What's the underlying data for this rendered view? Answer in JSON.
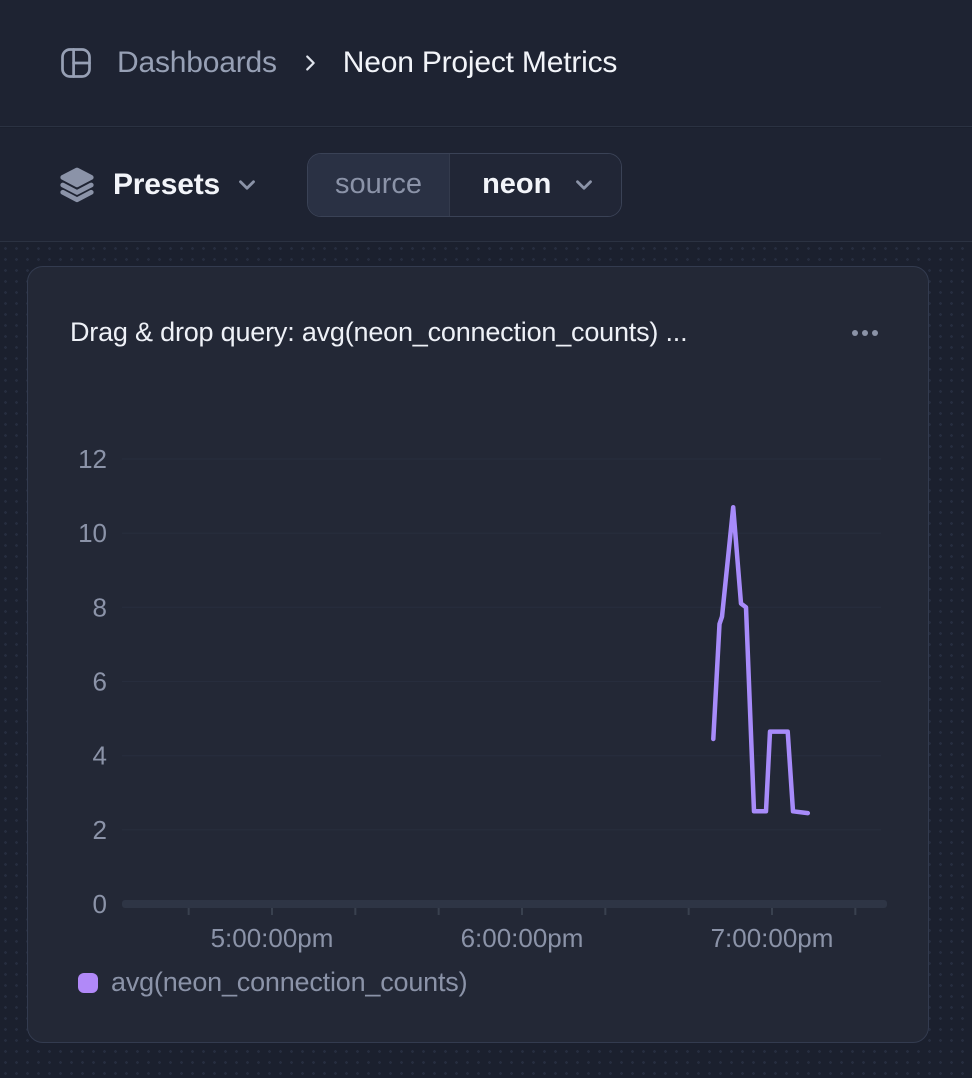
{
  "breadcrumb": {
    "section": "Dashboards",
    "page": "Neon Project Metrics"
  },
  "toolbar": {
    "presets_label": "Presets",
    "source_filter": {
      "key": "source",
      "value": "neon"
    }
  },
  "panel": {
    "title": "Drag & drop query: avg(neon_connection_counts) ...",
    "menu_icon": "ellipsis"
  },
  "colors": {
    "series_purple": "#a78bfa",
    "legend_swatch": "#b189f8",
    "text_primary": "#f2f4f9",
    "text_muted": "#8b93a8",
    "grid_line": "#272d3d",
    "axis_bar": "#2e3545"
  },
  "chart_data": {
    "type": "line",
    "title": "Drag & drop query: avg(neon_connection_counts) ...",
    "grid": true,
    "legend_position": "bottom-left",
    "y_axis": {
      "min": 0,
      "max": 12,
      "ticks": [
        0,
        2,
        4,
        6,
        8,
        10,
        12
      ]
    },
    "x_axis": {
      "type": "time",
      "range_hours": [
        16.4,
        19.46
      ],
      "tick_interval_minutes": 20,
      "tick_hours": [
        16.6667,
        17.0,
        17.3333,
        17.6667,
        18.0,
        18.3333,
        18.6667,
        19.0,
        19.3333
      ],
      "labels": [
        {
          "t": 17.0,
          "label": "5:00:00pm"
        },
        {
          "t": 18.0,
          "label": "6:00:00pm"
        },
        {
          "t": 19.0,
          "label": "7:00:00pm"
        }
      ]
    },
    "series": [
      {
        "name": "avg(neon_connection_counts)",
        "color": "#a78bfa",
        "points": [
          {
            "time": "6:45:54pm",
            "t": 18.765,
            "value": 4.45
          },
          {
            "time": "6:47:24pm",
            "t": 18.79,
            "value": 7.55
          },
          {
            "time": "6:48:00pm",
            "t": 18.8,
            "value": 7.75
          },
          {
            "time": "6:50:42pm",
            "t": 18.845,
            "value": 10.7
          },
          {
            "time": "6:52:34pm",
            "t": 18.876,
            "value": 8.1
          },
          {
            "time": "6:53:46pm",
            "t": 18.896,
            "value": 8.0
          },
          {
            "time": "6:55:41pm",
            "t": 18.928,
            "value": 2.5
          },
          {
            "time": "6:58:34pm",
            "t": 18.976,
            "value": 2.5
          },
          {
            "time": "6:59:31pm",
            "t": 18.992,
            "value": 4.65
          },
          {
            "time": "7:03:47pm",
            "t": 19.063,
            "value": 4.65
          },
          {
            "time": "7:05:02pm",
            "t": 19.084,
            "value": 2.5
          },
          {
            "time": "7:08:35pm",
            "t": 19.143,
            "value": 2.45
          }
        ]
      }
    ]
  }
}
